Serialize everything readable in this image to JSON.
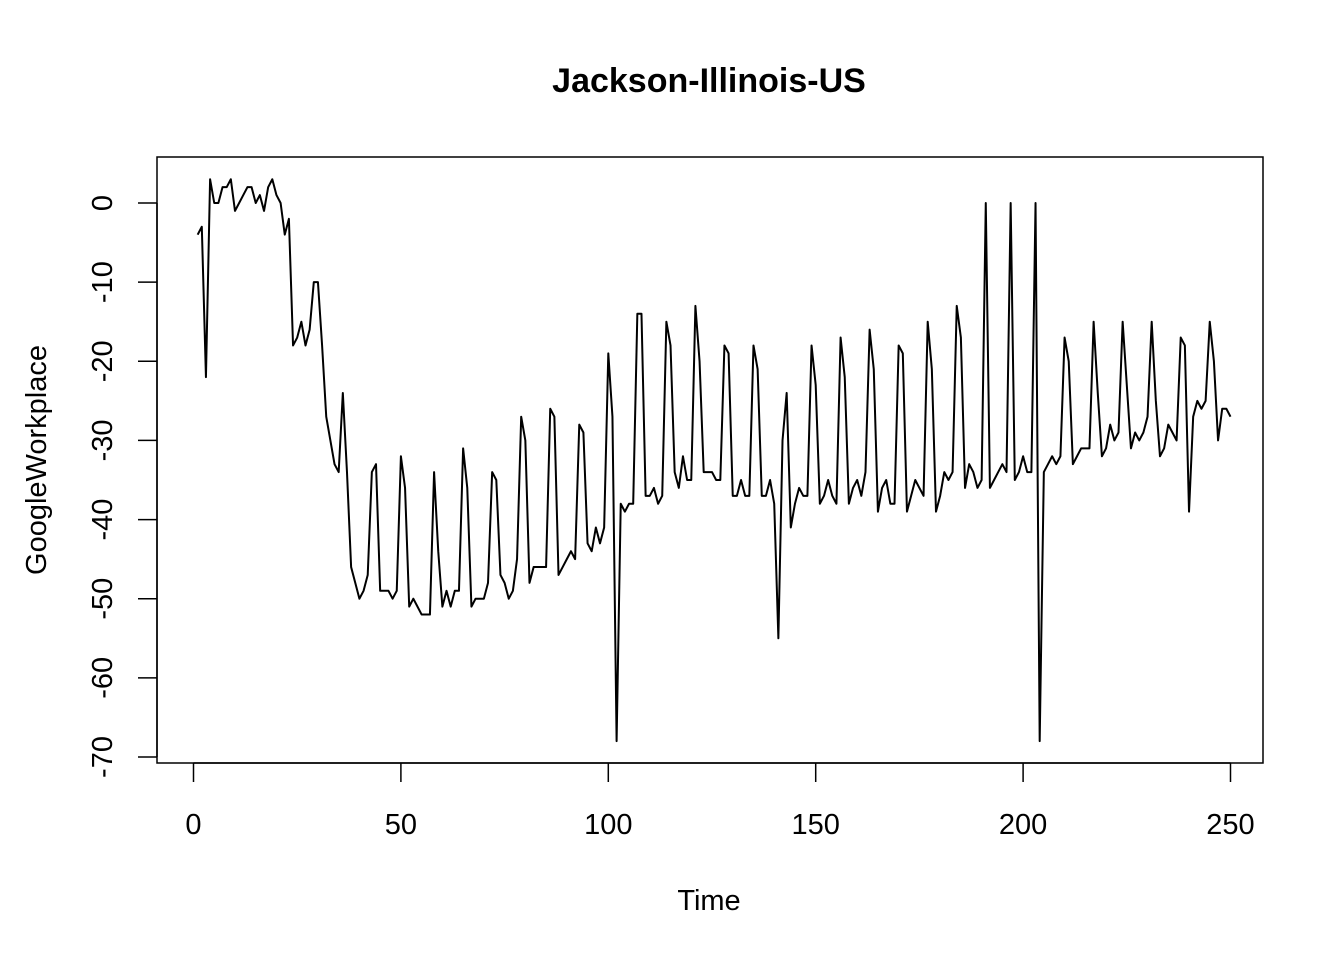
{
  "chart_data": {
    "type": "line",
    "title": "Jackson-Illinois-US",
    "xlabel": "Time",
    "ylabel": "GoogleWorkplace",
    "xlim": [
      0,
      250
    ],
    "ylim": [
      -70,
      0
    ],
    "x_ticks": [
      "0",
      "50",
      "100",
      "150",
      "200",
      "250"
    ],
    "y_ticks": [
      "0",
      "-10",
      "-20",
      "-30",
      "-40",
      "-50",
      "-60",
      "-70"
    ],
    "line_color": "#000000",
    "grid": false,
    "series": [
      {
        "x_start": 1,
        "values": [
          -4,
          -3,
          -22,
          3,
          0,
          0,
          2,
          2,
          3,
          -1,
          0,
          1,
          2,
          2,
          0,
          1,
          -1,
          2,
          3,
          1,
          0,
          -4,
          -2,
          -18,
          -17,
          -15,
          -18,
          -16,
          -10,
          -10,
          -18,
          -27,
          -30,
          -33,
          -34,
          -24,
          -34,
          -46,
          -48,
          -50,
          -49,
          -47,
          -34,
          -33,
          -49,
          -49,
          -49,
          -50,
          -49,
          -32,
          -36,
          -51,
          -50,
          -51,
          -52,
          -52,
          -52,
          -34,
          -44,
          -51,
          -49,
          -51,
          -49,
          -49,
          -31,
          -36,
          -51,
          -50,
          -50,
          -50,
          -48,
          -34,
          -35,
          -47,
          -48,
          -50,
          -49,
          -45,
          -27,
          -30,
          -48,
          -46,
          -46,
          -46,
          -46,
          -26,
          -27,
          -47,
          -46,
          -45,
          -44,
          -45,
          -28,
          -29,
          -43,
          -44,
          -41,
          -43,
          -41,
          -19,
          -27,
          -68,
          -38,
          -39,
          -38,
          -38,
          -14,
          -14,
          -37,
          -37,
          -36,
          -38,
          -37,
          -15,
          -18,
          -34,
          -36,
          -32,
          -35,
          -35,
          -13,
          -20,
          -34,
          -34,
          -34,
          -35,
          -35,
          -18,
          -19,
          -37,
          -37,
          -35,
          -37,
          -37,
          -18,
          -21,
          -37,
          -37,
          -35,
          -38,
          -55,
          -30,
          -24,
          -41,
          -38,
          -36,
          -37,
          -37,
          -18,
          -23,
          -38,
          -37,
          -35,
          -37,
          -38,
          -17,
          -22,
          -38,
          -36,
          -35,
          -37,
          -34,
          -16,
          -21,
          -39,
          -36,
          -35,
          -38,
          -38,
          -18,
          -19,
          -39,
          -37,
          -35,
          -36,
          -37,
          -15,
          -21,
          -39,
          -37,
          -34,
          -35,
          -34,
          -13,
          -17,
          -36,
          -33,
          -34,
          -36,
          -35,
          0,
          -36,
          -35,
          -34,
          -33,
          -34,
          0,
          -35,
          -34,
          -32,
          -34,
          -34,
          0,
          -68,
          -34,
          -33,
          -32,
          -33,
          -32,
          -17,
          -20,
          -33,
          -32,
          -31,
          -31,
          -31,
          -15,
          -24,
          -32,
          -31,
          -28,
          -30,
          -29,
          -15,
          -23,
          -31,
          -29,
          -30,
          -29,
          -27,
          -15,
          -25,
          -32,
          -31,
          -28,
          -29,
          -30,
          -17,
          -18,
          -39,
          -27,
          -25,
          -26,
          -25,
          -15,
          -20,
          -30,
          -26,
          -26,
          -27
        ]
      }
    ]
  }
}
